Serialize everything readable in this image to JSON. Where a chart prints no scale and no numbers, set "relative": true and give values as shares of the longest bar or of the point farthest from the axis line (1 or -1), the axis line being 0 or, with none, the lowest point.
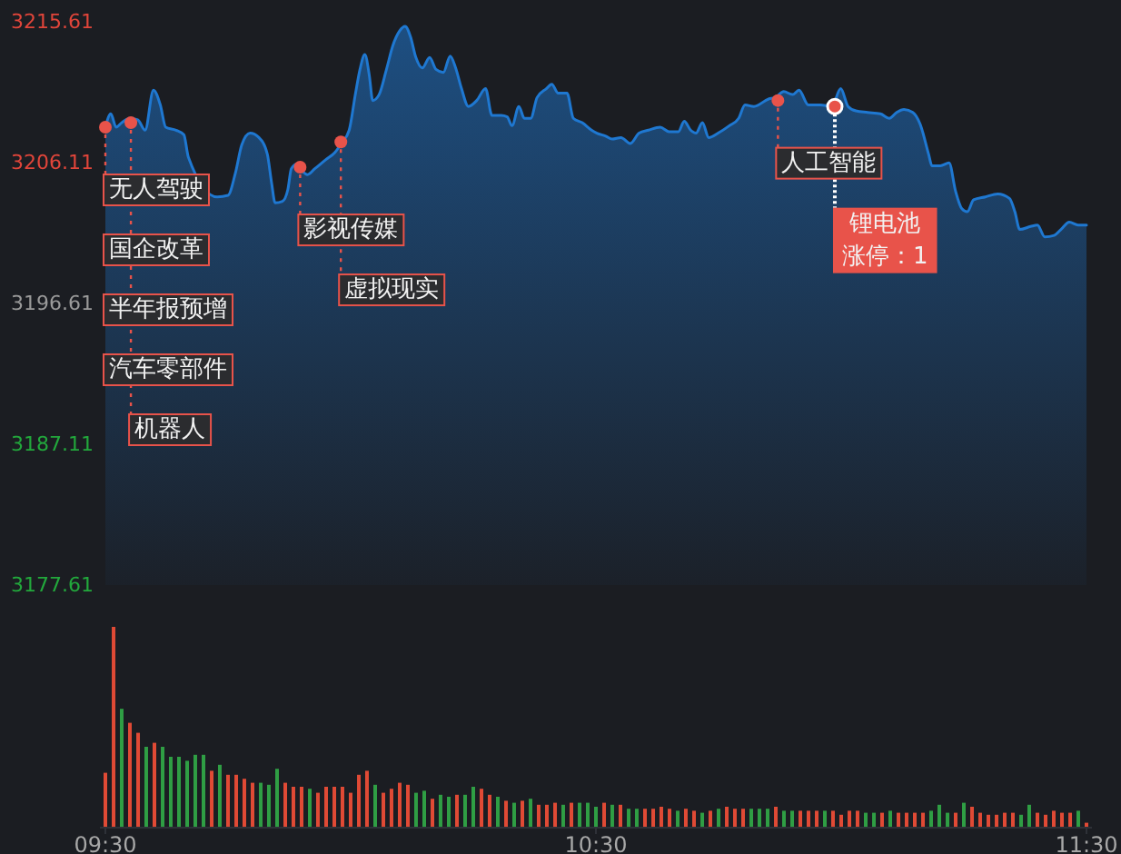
{
  "chart_data": [
    {
      "type": "area",
      "color": "#1f78d1",
      "xlim": [
        9.5,
        11.5
      ],
      "ylim": [
        3177.61,
        3215.61
      ],
      "yticks": [
        3177.61,
        3187.11,
        3196.61,
        3206.11,
        3215.61
      ],
      "tick_labels": "y",
      "x": [
        9.5,
        9.511,
        9.522,
        9.533,
        9.55,
        9.566,
        9.581,
        9.598,
        9.612,
        9.623,
        9.644,
        9.66,
        9.669,
        9.679,
        9.699,
        9.728,
        9.75,
        9.765,
        9.778,
        9.795,
        9.813,
        9.83,
        9.839,
        9.846,
        9.861,
        9.872,
        9.879,
        9.89,
        9.9,
        9.912,
        9.927,
        9.949,
        9.968,
        9.981,
        9.997,
        10.01,
        10.019,
        10.029,
        10.038,
        10.045,
        10.058,
        10.073,
        10.086,
        10.1,
        10.111,
        10.122,
        10.133,
        10.146,
        10.161,
        10.174,
        10.189,
        10.203,
        10.214,
        10.226,
        10.24,
        10.257,
        10.275,
        10.288,
        10.307,
        10.319,
        10.329,
        10.343,
        10.354,
        10.367,
        10.38,
        10.399,
        10.41,
        10.423,
        10.441,
        10.454,
        10.472,
        10.491,
        10.502,
        10.52,
        10.533,
        10.551,
        10.57,
        10.588,
        10.607,
        10.631,
        10.649,
        10.668,
        10.68,
        10.693,
        10.704,
        10.717,
        10.73,
        10.749,
        10.772,
        10.791,
        10.804,
        10.822,
        10.852,
        10.865,
        10.883,
        10.901,
        10.914,
        10.933,
        10.957,
        10.981,
        10.999,
        11.014,
        11.03,
        11.054,
        11.08,
        11.098,
        11.113,
        11.128,
        11.146,
        11.161,
        11.178,
        11.185,
        11.202,
        11.22,
        11.233,
        11.246,
        11.257,
        11.27,
        11.294,
        11.319,
        11.343,
        11.354,
        11.364,
        11.386,
        11.4,
        11.415,
        11.434,
        11.448,
        11.465,
        11.483,
        11.5
      ],
      "values": [
        3208.5,
        3209.4,
        3208.5,
        3208.8,
        3209.1,
        3209.0,
        3208.3,
        3211.0,
        3210.0,
        3208.5,
        3208.3,
        3208.0,
        3206.5,
        null,
        null,
        3203.8,
        3203.9,
        3205.4,
        3207.3,
        3208.1,
        3207.8,
        3206.7,
        3204.7,
        3203.4,
        3203.5,
        3204.3,
        3205.7,
        3206.0,
        3205.6,
        3205.3,
        3205.7,
        3206.3,
        3206.8,
        3207.4,
        3208.3,
        3210.8,
        3212.4,
        3213.4,
        3212.0,
        3210.3,
        3210.7,
        3212.4,
        3214.0,
        3215.0,
        3215.3,
        3214.6,
        3213.2,
        3212.5,
        3213.2,
        3212.4,
        3212.2,
        3213.3,
        3212.5,
        3211.1,
        3209.9,
        3210.3,
        3211.1,
        3209.3,
        3209.3,
        3209.2,
        3208.6,
        3209.9,
        3209.1,
        3209.1,
        3210.5,
        3211.1,
        3211.4,
        3210.8,
        3210.8,
        3209.1,
        3208.8,
        3208.3,
        3208.1,
        3207.9,
        3207.7,
        3207.8,
        3207.4,
        3208.1,
        3208.3,
        3208.5,
        3208.2,
        3208.2,
        3208.9,
        3208.3,
        3208.1,
        3208.8,
        3207.8,
        3208.1,
        3208.6,
        3209.1,
        3210.0,
        3209.9,
        3210.4,
        3210.5,
        3210.9,
        3210.7,
        3211.0,
        3210.0,
        3210.0,
        3209.9,
        3211.1,
        3209.9,
        3209.6,
        3209.5,
        3209.4,
        3209.1,
        3209.5,
        3209.7,
        3209.5,
        3208.7,
        3206.7,
        3205.9,
        3205.9,
        3206.1,
        3204.2,
        3203.0,
        3202.8,
        3203.6,
        3203.8,
        3204.0,
        3203.7,
        3202.8,
        3201.6,
        3201.8,
        3201.9,
        3201.1,
        3201.2,
        3201.6,
        3202.1,
        3201.9,
        3201.9
      ],
      "annotations": [
        {
          "text": "无人驾驶",
          "x": 9.5,
          "y": 3208.5
        },
        "国企改革",
        "半年报预增",
        "汽车零部件",
        {
          "text": "机器人",
          "x": 9.552,
          "y": 3208.8
        },
        {
          "text": "影视传媒",
          "x": 9.897,
          "y": 3205.8
        },
        {
          "text": "虚拟现实",
          "x": 9.98,
          "y": 3207.5
        },
        {
          "text": "人工智能",
          "x": 10.871,
          "y": 3210.3
        },
        {
          "text": "锂电池涨停：1",
          "x": 10.987,
          "y": 3209.9
        }
      ]
    },
    {
      "type": "bar",
      "relative": true,
      "tick_labels": "x",
      "xlim": [
        9.5,
        11.5
      ],
      "xticks": [
        {
          "value": 9.5,
          "label": "09:30"
        },
        {
          "value": 10.5,
          "label": "10:30"
        },
        {
          "value": 11.5,
          "label": "11:30"
        }
      ],
      "x": [
        9.5,
        9.5167,
        9.5333,
        9.55,
        9.5667,
        9.5833,
        9.6,
        9.6167,
        9.6333,
        9.65,
        9.6667,
        9.6833,
        9.7,
        9.7167,
        9.7333,
        9.75,
        9.7667,
        9.7833,
        9.8,
        9.8167,
        9.8333,
        9.85,
        9.8667,
        9.8833,
        9.9,
        9.9167,
        9.9333,
        9.95,
        9.9667,
        9.9833,
        10,
        10.0167,
        10.0333,
        10.05,
        10.0667,
        10.0833,
        10.1,
        10.1167,
        10.1333,
        10.15,
        10.1667,
        10.1833,
        10.2,
        10.2167,
        10.2333,
        10.25,
        10.2667,
        10.2833,
        10.3,
        10.3167,
        10.3333,
        10.35,
        10.3667,
        10.3833,
        10.4,
        10.4167,
        10.4333,
        10.45,
        10.4667,
        10.4833,
        10.5,
        10.5167,
        10.5333,
        10.55,
        10.5667,
        10.5833,
        10.6,
        10.6167,
        10.6333,
        10.65,
        10.6667,
        10.6833,
        10.7,
        10.7167,
        10.7333,
        10.75,
        10.7667,
        10.7833,
        10.8,
        10.8167,
        10.8333,
        10.85,
        10.8667,
        10.8833,
        10.9,
        10.9167,
        10.9333,
        10.95,
        10.9667,
        10.9833,
        11,
        11.0167,
        11.0333,
        11.05,
        11.0667,
        11.0833,
        11.1,
        11.1167,
        11.1333,
        11.15,
        11.1667,
        11.1833,
        11.2,
        11.2167,
        11.2333,
        11.25,
        11.2667,
        11.2833,
        11.3,
        11.3167,
        11.3333,
        11.35,
        11.3667,
        11.3833,
        11.4,
        11.4167,
        11.4333,
        11.45,
        11.4667,
        11.4833,
        11.5
      ],
      "values": [
        0.27,
        1,
        0.59,
        0.52,
        0.47,
        0.4,
        0.42,
        0.4,
        0.35,
        0.35,
        0.33,
        0.36,
        0.36,
        0.28,
        0.31,
        0.26,
        0.26,
        0.24,
        0.22,
        0.22,
        0.21,
        0.29,
        0.22,
        0.2,
        0.2,
        0.19,
        0.17,
        0.2,
        0.2,
        0.2,
        0.17,
        0.26,
        0.28,
        0.21,
        0.17,
        0.19,
        0.22,
        0.21,
        0.17,
        0.18,
        0.14,
        0.16,
        0.15,
        0.16,
        0.16,
        0.2,
        0.19,
        0.16,
        0.15,
        0.13,
        0.12,
        0.13,
        0.14,
        0.11,
        0.11,
        0.12,
        0.11,
        0.12,
        0.12,
        0.12,
        0.1,
        0.12,
        0.11,
        0.11,
        0.09,
        0.09,
        0.09,
        0.09,
        0.1,
        0.09,
        0.08,
        0.09,
        0.08,
        0.07,
        0.08,
        0.09,
        0.1,
        0.09,
        0.09,
        0.09,
        0.09,
        0.09,
        0.1,
        0.08,
        0.08,
        0.08,
        0.08,
        0.08,
        0.08,
        0.08,
        0.06,
        0.08,
        0.08,
        0.07,
        0.07,
        0.07,
        0.08,
        0.07,
        0.07,
        0.07,
        0.07,
        0.08,
        0.11,
        0.07,
        0.07,
        0.12,
        0.1,
        0.07,
        0.06,
        0.06,
        0.07,
        0.07,
        0.06,
        0.11,
        0.07,
        0.06,
        0.08,
        0.07,
        0.07,
        0.08,
        0.02
      ],
      "colors": [
        "#e04a35",
        "#e04a35",
        "#2f9e44",
        "#e04a35",
        "#e04a35",
        "#2f9e44",
        "#e04a35",
        "#2f9e44",
        "#2f9e44",
        "#2f9e44",
        "#2f9e44",
        "#2f9e44",
        "#2f9e44",
        "#e04a35",
        "#2f9e44",
        "#e04a35",
        "#e04a35",
        "#e04a35",
        "#e04a35",
        "#2f9e44",
        "#2f9e44",
        "#2f9e44",
        "#e04a35",
        "#e04a35",
        "#e04a35",
        "#2f9e44",
        "#e04a35",
        "#e04a35",
        "#e04a35",
        "#e04a35",
        "#e04a35",
        "#e04a35",
        "#e04a35",
        "#2f9e44",
        "#e04a35",
        "#e04a35",
        "#e04a35",
        "#e04a35",
        "#2f9e44",
        "#2f9e44",
        "#e04a35",
        "#2f9e44",
        "#2f9e44",
        "#e04a35",
        "#2f9e44",
        "#2f9e44",
        "#e04a35",
        "#e04a35",
        "#2f9e44",
        "#e04a35",
        "#2f9e44",
        "#e04a35",
        "#2f9e44",
        "#e04a35",
        "#e04a35",
        "#e04a35",
        "#2f9e44",
        "#e04a35",
        "#2f9e44",
        "#2f9e44",
        "#2f9e44",
        "#e04a35",
        "#2f9e44",
        "#e04a35",
        "#2f9e44",
        "#2f9e44",
        "#e04a35",
        "#e04a35",
        "#e04a35",
        "#e04a35",
        "#2f9e44",
        "#e04a35",
        "#e04a35",
        "#2f9e44",
        "#e04a35",
        "#2f9e44",
        "#e04a35",
        "#e04a35",
        "#e04a35",
        "#2f9e44",
        "#2f9e44",
        "#2f9e44",
        "#e04a35",
        "#2f9e44",
        "#2f9e44",
        "#e04a35",
        "#e04a35",
        "#e04a35",
        "#2f9e44",
        "#e04a35",
        "#e04a35",
        "#e04a35",
        "#e04a35",
        "#2f9e44",
        "#2f9e44",
        "#e04a35",
        "#2f9e44",
        "#e04a35",
        "#e04a35",
        "#e04a35",
        "#e04a35",
        "#2f9e44",
        "#2f9e44",
        "#2f9e44",
        "#e04a35",
        "#2f9e44",
        "#e04a35",
        "#e04a35",
        "#e04a35",
        "#e04a35",
        "#e04a35",
        "#e04a35",
        "#2f9e44",
        "#2f9e44",
        "#e04a35",
        "#e04a35",
        "#e04a35",
        "#e04a35",
        "#e04a35",
        "#2f9e44",
        "#e04a35"
      ]
    }
  ]
}
